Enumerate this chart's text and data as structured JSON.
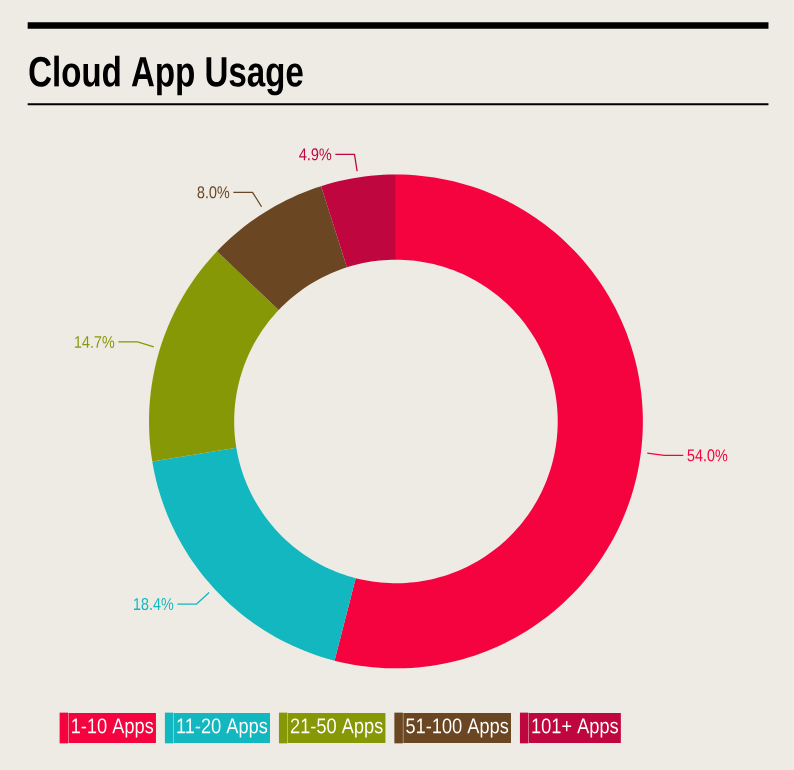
{
  "chart_data": {
    "type": "donut",
    "title": "Cloud App Usage",
    "categories": [
      "1-10 Apps",
      "11-20 Apps",
      "21-50 Apps",
      "51-100 Apps",
      "101+ Apps"
    ],
    "values": [
      54.0,
      18.4,
      14.7,
      8.0,
      4.9
    ],
    "value_labels": [
      "54.0%",
      "18.4%",
      "14.7%",
      "8.0%",
      "4.9%"
    ],
    "colors": [
      "#f5033f",
      "#13b7bf",
      "#879807",
      "#6a4622",
      "#c0063f"
    ],
    "legend": "bottom"
  }
}
